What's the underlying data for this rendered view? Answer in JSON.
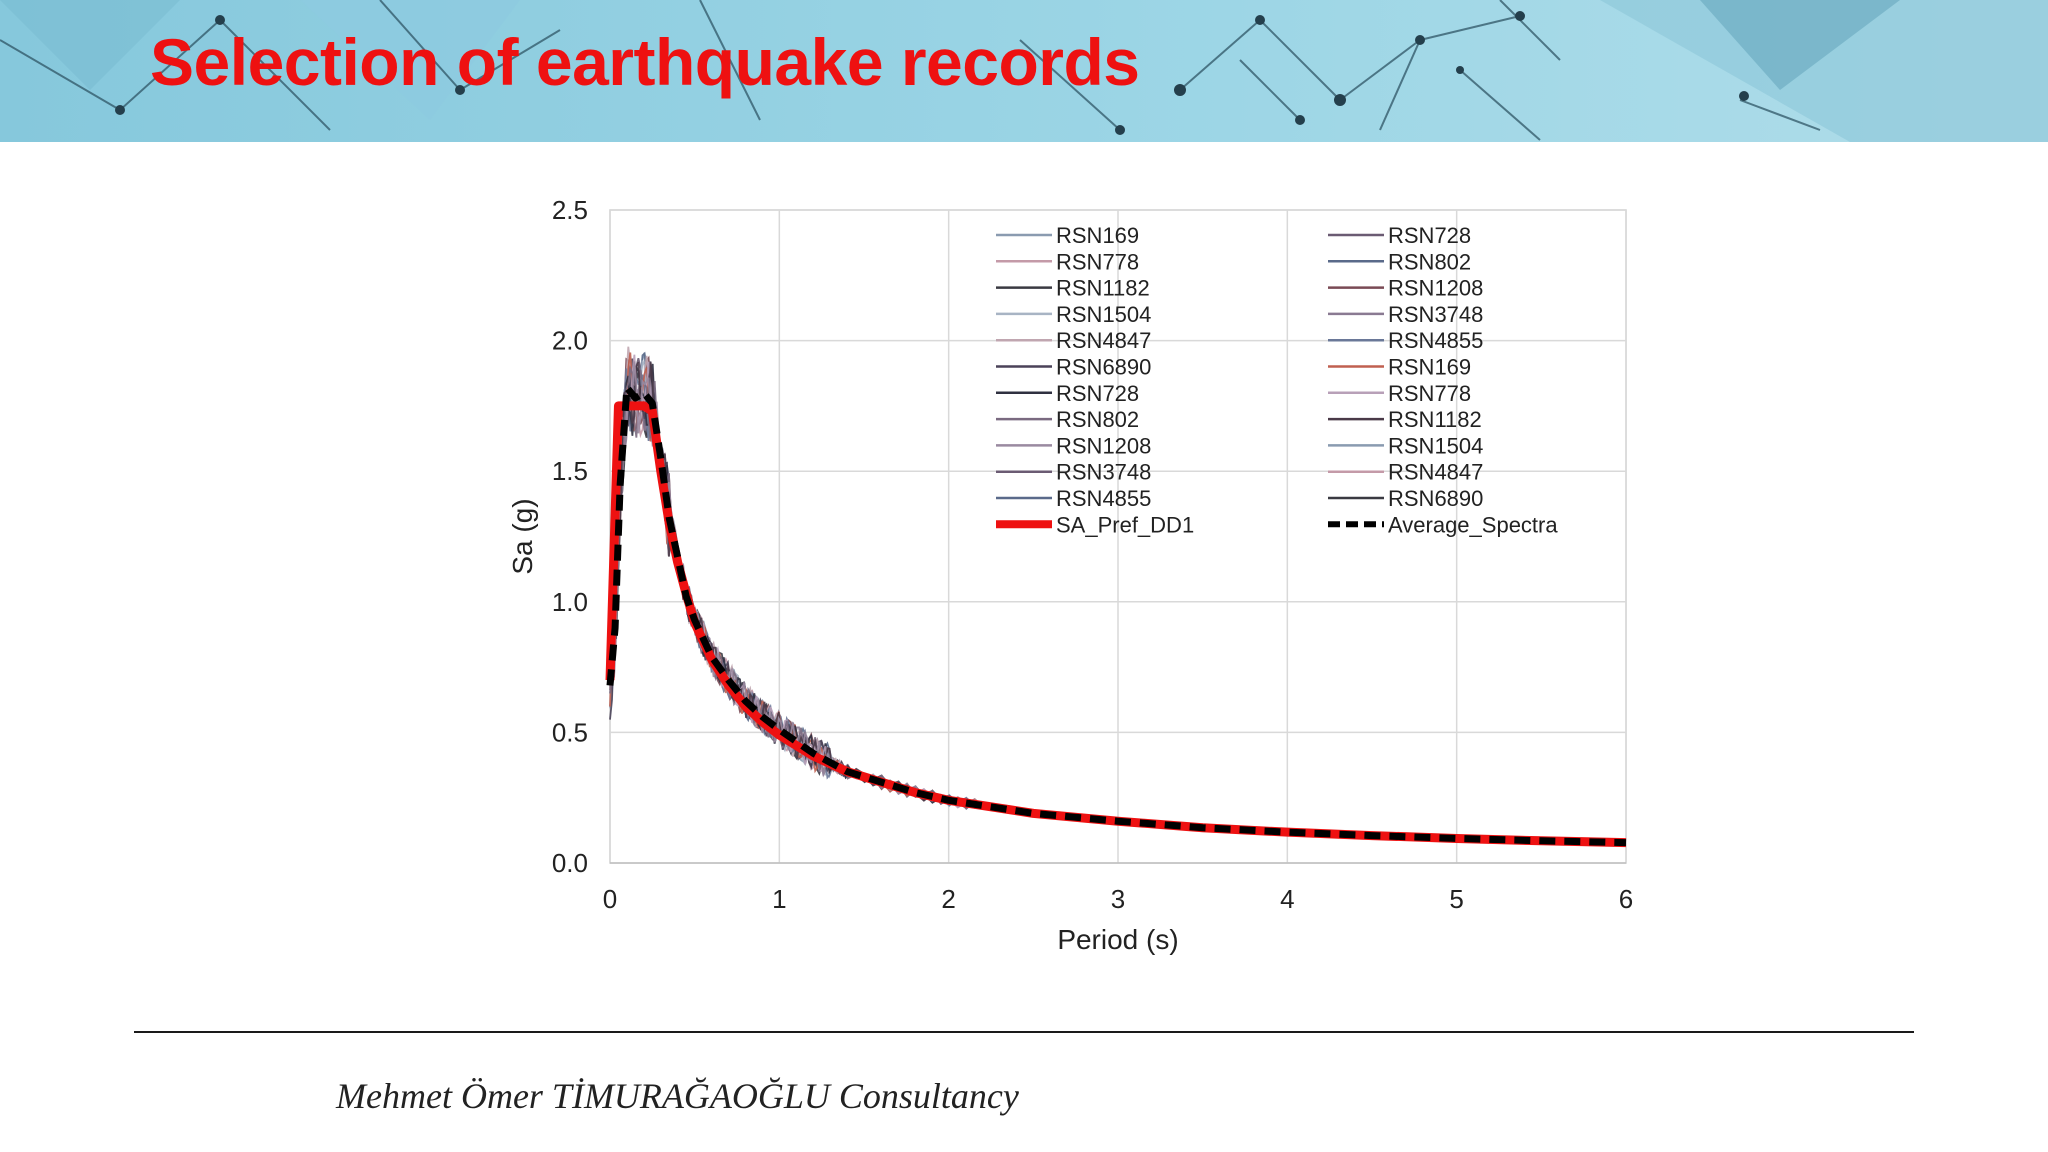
{
  "slide": {
    "title": "Selection of earthquake records",
    "footer": "Mehmet Ömer TİMURAĞAOĞLU Consultancy"
  },
  "colors": {
    "title": "#ee1111",
    "banner": "#8fd0e2",
    "target": "#ee1111",
    "average": "#000000"
  },
  "chart_data": {
    "type": "line",
    "title": "",
    "xlabel": "Period (s)",
    "ylabel": "Sa (g)",
    "xlim": [
      0,
      6
    ],
    "ylim": [
      0,
      2.5
    ],
    "xticks": [
      "0",
      "1",
      "2",
      "3",
      "4",
      "5",
      "6"
    ],
    "yticks": [
      "0.0",
      "0.5",
      "1.0",
      "1.5",
      "2.0",
      "2.5"
    ],
    "grid": true,
    "legend_position": "top-right",
    "legend": {
      "col1": [
        "RSN169",
        "RSN778",
        "RSN1182",
        "RSN1504",
        "RSN4847",
        "RSN6890",
        "RSN728",
        "RSN802",
        "RSN1208",
        "RSN3748",
        "RSN4855",
        "SA_Pref_DD1"
      ],
      "col2": [
        "RSN728",
        "RSN802",
        "RSN1208",
        "RSN3748",
        "RSN4855",
        "RSN169",
        "RSN778",
        "RSN1182",
        "RSN1504",
        "RSN4847",
        "RSN6890",
        "Average_Spectra"
      ]
    },
    "series_colors": [
      "#8a9bb0",
      "#6b5b73",
      "#c49aa8",
      "#5a6a8a",
      "#3a3a42",
      "#7a4a55",
      "#a8b4c4",
      "#8a7a92",
      "#c0a6b0",
      "#6a7898",
      "#4a4258",
      "#c06050",
      "#2f3040",
      "#b8a0b8",
      "#7a6a80",
      "#4a3a48",
      "#9a8aa0"
    ],
    "target_spectrum": {
      "name": "SA_Pref_DD1",
      "x": [
        0,
        0.05,
        0.1,
        0.2,
        0.25,
        0.3,
        0.35,
        0.4,
        0.45,
        0.5,
        0.6,
        0.7,
        0.8,
        0.9,
        1.0,
        1.2,
        1.4,
        1.6,
        1.8,
        2.0,
        2.5,
        3.0,
        3.5,
        4.0,
        4.5,
        5.0,
        5.5,
        6.0
      ],
      "y": [
        0.7,
        1.75,
        1.75,
        1.75,
        1.73,
        1.5,
        1.3,
        1.15,
        1.03,
        0.92,
        0.78,
        0.68,
        0.6,
        0.54,
        0.49,
        0.41,
        0.35,
        0.31,
        0.27,
        0.24,
        0.19,
        0.16,
        0.135,
        0.118,
        0.105,
        0.094,
        0.085,
        0.078
      ]
    },
    "average_spectrum": {
      "name": "Average_Spectra",
      "x": [
        0,
        0.03,
        0.06,
        0.1,
        0.15,
        0.2,
        0.25,
        0.3,
        0.35,
        0.4,
        0.45,
        0.5,
        0.6,
        0.7,
        0.8,
        0.9,
        1.0,
        1.2,
        1.4,
        1.6,
        1.8,
        2.0,
        2.5,
        3.0,
        3.5,
        4.0,
        4.5,
        5.0,
        5.5,
        6.0
      ],
      "y": [
        0.68,
        0.9,
        1.45,
        1.82,
        1.78,
        1.8,
        1.76,
        1.55,
        1.32,
        1.17,
        1.02,
        0.93,
        0.79,
        0.7,
        0.62,
        0.56,
        0.51,
        0.42,
        0.35,
        0.31,
        0.27,
        0.24,
        0.19,
        0.16,
        0.135,
        0.118,
        0.105,
        0.094,
        0.085,
        0.078
      ]
    }
  }
}
